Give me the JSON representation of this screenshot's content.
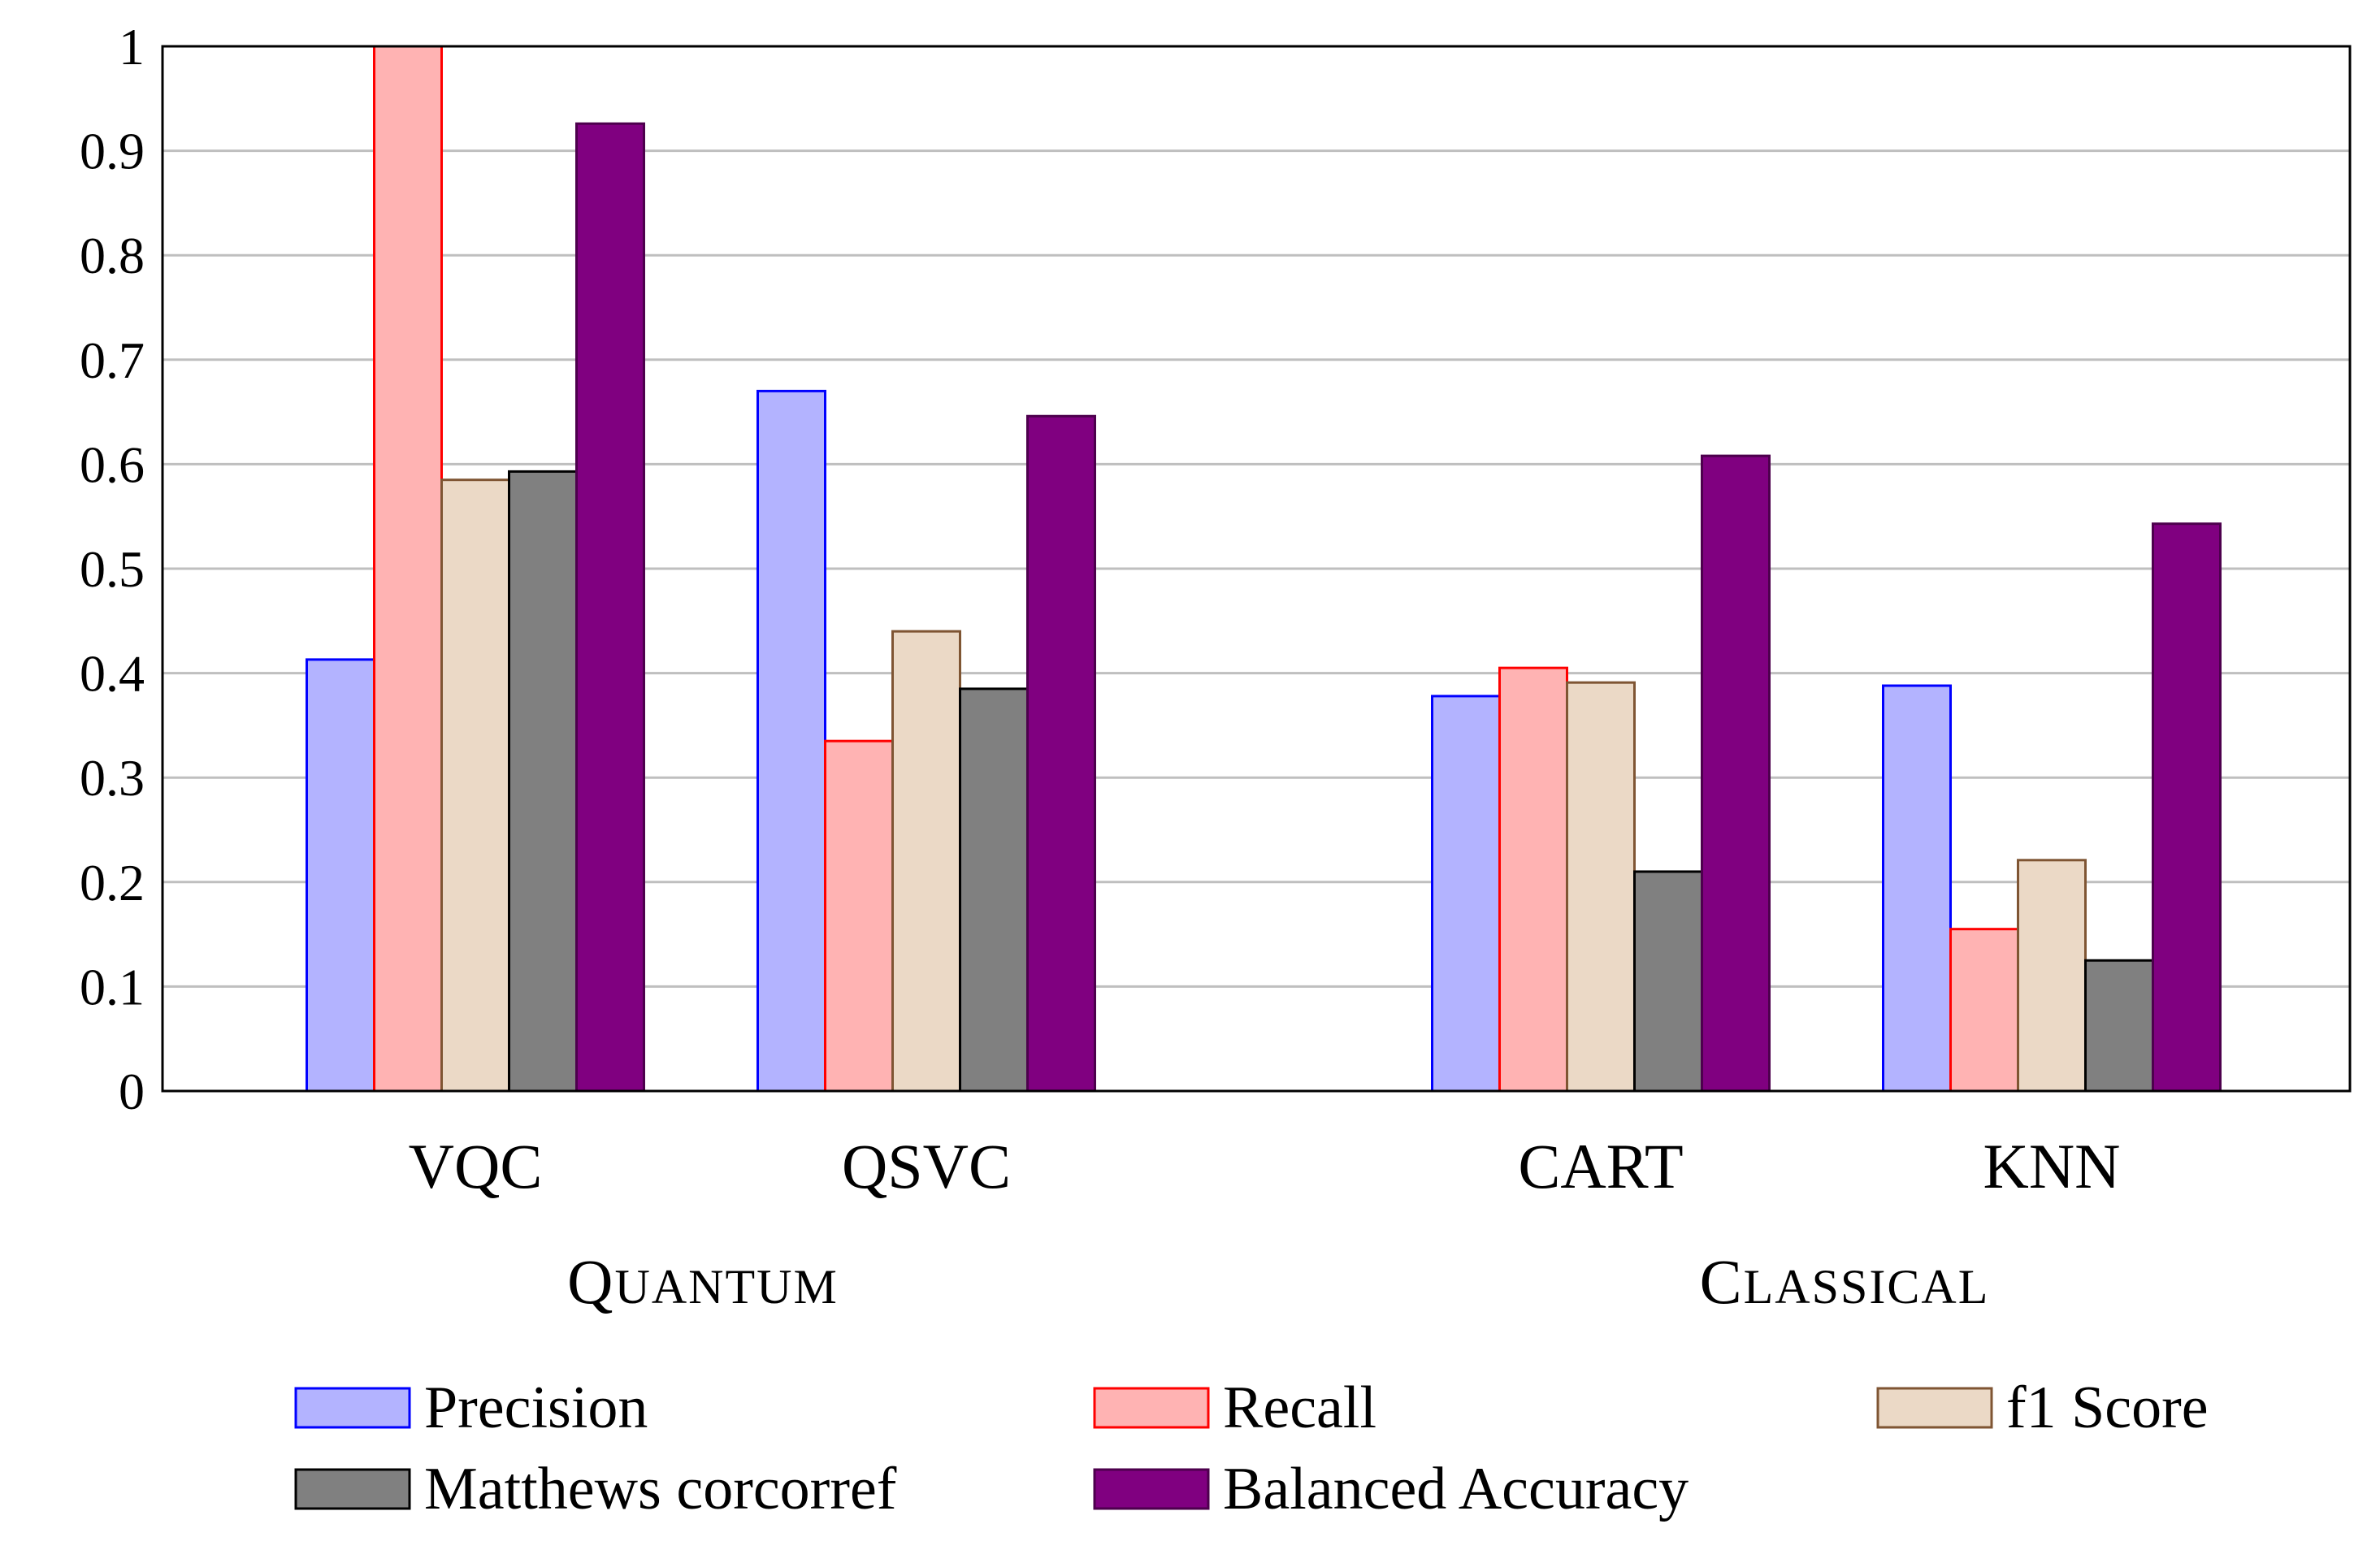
{
  "chart_data": {
    "type": "bar",
    "title": "",
    "xlabel": "",
    "ylabel": "",
    "ylim": [
      0,
      1
    ],
    "yticks": [
      "0",
      "0.1",
      "0.2",
      "0.3",
      "0.4",
      "0.5",
      "0.6",
      "0.7",
      "0.8",
      "0.9",
      "1"
    ],
    "categories": [
      "VQC",
      "QSVC",
      "CART",
      "KNN"
    ],
    "groups": [
      {
        "label": "Quantum",
        "categories": [
          "VQC",
          "QSVC"
        ]
      },
      {
        "label": "Classical",
        "categories": [
          "CART",
          "KNN"
        ]
      }
    ],
    "grid": true,
    "legend_position": "bottom",
    "series": [
      {
        "name": "Precision",
        "values": [
          0.413,
          0.67,
          0.378,
          0.388
        ],
        "fill": "#b3b3ff",
        "stroke": "#0000ff"
      },
      {
        "name": "Recall",
        "values": [
          1.0,
          0.335,
          0.405,
          0.155
        ],
        "fill": "#ffb3b3",
        "stroke": "#ff0000"
      },
      {
        "name": "f1 Score",
        "values": [
          0.585,
          0.44,
          0.391,
          0.221
        ],
        "fill": "#ebd9c6",
        "stroke": "#7f5533"
      },
      {
        "name": "Matthews corcorref",
        "values": [
          0.593,
          0.385,
          0.21,
          0.125
        ],
        "fill": "#808080",
        "stroke": "#000000"
      },
      {
        "name": "Balanced Accuracy",
        "values": [
          0.926,
          0.646,
          0.608,
          0.543
        ],
        "fill": "#800080",
        "stroke": "#4d004d"
      }
    ]
  }
}
